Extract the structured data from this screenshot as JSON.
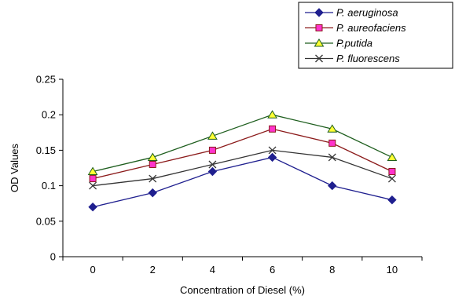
{
  "chart_data": {
    "type": "line",
    "xlabel": "Concentration of Diesel (%)",
    "ylabel": "OD Values",
    "x": [
      0,
      2,
      4,
      6,
      8,
      10
    ],
    "categories": [
      "0",
      "2",
      "4",
      "6",
      "8",
      "10"
    ],
    "ylim": [
      0,
      0.25
    ],
    "yticks": [
      "0",
      "0.05",
      "0.1",
      "0.15",
      "0.2",
      "0.25"
    ],
    "grid": false,
    "legend": "top-right",
    "series": [
      {
        "name": "P. aeruginosa",
        "values": [
          0.07,
          0.09,
          0.12,
          0.14,
          0.1,
          0.08
        ],
        "color": "#1f1f8f",
        "marker": "diamond",
        "marker_fill": "#1f1f8f"
      },
      {
        "name": "P.  aureofaciens",
        "values": [
          0.11,
          0.13,
          0.15,
          0.18,
          0.16,
          0.12
        ],
        "color": "#8b1a1a",
        "marker": "square",
        "marker_fill": "#ff33cc"
      },
      {
        "name": "P.putida",
        "values": [
          0.12,
          0.14,
          0.17,
          0.2,
          0.18,
          0.14
        ],
        "color": "#1e5e1e",
        "marker": "triangle",
        "marker_fill": "#ffff33"
      },
      {
        "name": "P. fluorescens",
        "values": [
          0.1,
          0.11,
          0.13,
          0.15,
          0.14,
          0.11
        ],
        "color": "#333333",
        "marker": "x",
        "marker_fill": "#333333"
      }
    ]
  }
}
